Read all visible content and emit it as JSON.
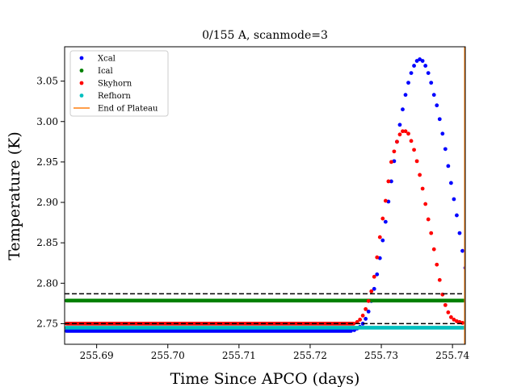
{
  "chart_data": {
    "type": "scatter",
    "title": "0/155 A, scanmode=3",
    "xlabel": "Time Since APCO (days)",
    "ylabel": "Temperature (K)",
    "xlim": [
      255.6855,
      255.7418
    ],
    "ylim": [
      2.7245,
      3.0925
    ],
    "xticks": [
      255.69,
      255.7,
      255.71,
      255.72,
      255.73,
      255.74
    ],
    "xtick_labels": [
      "255.69",
      "255.70",
      "255.71",
      "255.72",
      "255.73",
      "255.74"
    ],
    "yticks": [
      2.75,
      2.8,
      2.85,
      2.9,
      2.95,
      3.0,
      3.05
    ],
    "ytick_labels": [
      "2.75",
      "2.80",
      "2.85",
      "2.90",
      "2.95",
      "3.00",
      "3.05"
    ],
    "grid": false,
    "legend_position": "top-left",
    "series": [
      {
        "name": "Xcal",
        "color": "#0000ff",
        "baseline": 2.741,
        "baseline_x": [
          255.6855,
          255.726
        ],
        "x": [
          255.7262,
          255.7266,
          255.727,
          255.7274,
          255.7278,
          255.7282,
          255.7286,
          255.729,
          255.7294,
          255.7298,
          255.7302,
          255.7306,
          255.731,
          255.7314,
          255.7318,
          255.7322,
          255.7326,
          255.733,
          255.7334,
          255.7338,
          255.7342,
          255.7346,
          255.735,
          255.7354,
          255.7358,
          255.7362,
          255.7366,
          255.737,
          255.7374,
          255.7378,
          255.7382,
          255.7386,
          255.739,
          255.7394,
          255.7398,
          255.7402,
          255.7406,
          255.741,
          255.7414,
          255.7418
        ],
        "y": [
          2.742,
          2.744,
          2.746,
          2.75,
          2.756,
          2.765,
          2.778,
          2.793,
          2.811,
          2.831,
          2.853,
          2.876,
          2.901,
          2.926,
          2.951,
          2.975,
          2.996,
          3.015,
          3.033,
          3.048,
          3.06,
          3.069,
          3.075,
          3.077,
          3.075,
          3.069,
          3.06,
          3.048,
          3.033,
          3.02,
          3.003,
          2.985,
          2.966,
          2.945,
          2.924,
          2.904,
          2.884,
          2.862,
          2.84,
          2.819
        ]
      },
      {
        "name": "Ical",
        "color": "#008000",
        "baseline": 2.7785,
        "baseline_x": [
          255.6855,
          255.7418
        ],
        "x": [],
        "y": []
      },
      {
        "name": "Skyhorn",
        "color": "#ff0000",
        "baseline": 2.75,
        "baseline_x": [
          255.6855,
          255.7264
        ],
        "x": [
          255.7266,
          255.727,
          255.7274,
          255.7278,
          255.7282,
          255.7286,
          255.729,
          255.7294,
          255.7298,
          255.7302,
          255.7306,
          255.731,
          255.7314,
          255.7318,
          255.7322,
          255.7326,
          255.733,
          255.7334,
          255.7338,
          255.7342,
          255.7346,
          255.735,
          255.7354,
          255.7358,
          255.7362,
          255.7366,
          255.737,
          255.7374,
          255.7378,
          255.7382,
          255.7386,
          255.739,
          255.7394,
          255.7398,
          255.7402,
          255.7406,
          255.741,
          255.7414,
          255.7418
        ],
        "y": [
          2.752,
          2.755,
          2.76,
          2.768,
          2.778,
          2.79,
          2.808,
          2.832,
          2.857,
          2.88,
          2.902,
          2.926,
          2.95,
          2.963,
          2.975,
          2.984,
          2.988,
          2.988,
          2.985,
          2.976,
          2.965,
          2.951,
          2.934,
          2.917,
          2.898,
          2.879,
          2.862,
          2.842,
          2.823,
          2.804,
          2.786,
          2.773,
          2.764,
          2.758,
          2.755,
          2.753,
          2.752,
          2.751,
          2.751
        ]
      },
      {
        "name": "Refhorn",
        "color": "#00bfbf",
        "baseline": 2.745,
        "baseline_x": [
          255.6855,
          255.7418
        ],
        "x": [],
        "y": []
      },
      {
        "name": "End of Plateau",
        "color": "#ff7f0e",
        "type": "vline",
        "x": [
          255.7418
        ]
      }
    ],
    "reference_lines": [
      {
        "y": 2.787,
        "style": "dashed",
        "color": "#000000"
      },
      {
        "y": 2.75,
        "style": "dashed",
        "color": "#000000"
      }
    ]
  }
}
